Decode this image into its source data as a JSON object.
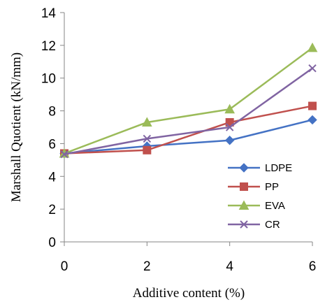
{
  "chart_data": {
    "type": "line",
    "title": "",
    "xlabel": "Additive content (%)",
    "ylabel": "Marshall Quotient (kN/mm)",
    "x": [
      0,
      2,
      4,
      6
    ],
    "xlim": [
      0,
      6
    ],
    "ylim": [
      0,
      14
    ],
    "xticks": [
      "0",
      "2",
      "4",
      "6"
    ],
    "yticks": [
      "0",
      "2",
      "4",
      "6",
      "8",
      "10",
      "12",
      "14"
    ],
    "grid": false,
    "legend_position": "bottom-right",
    "series": [
      {
        "name": "LDPE",
        "values": [
          5.4,
          5.85,
          6.2,
          7.45
        ],
        "color": "#4472C4",
        "marker": "diamond"
      },
      {
        "name": "PP",
        "values": [
          5.4,
          5.6,
          7.3,
          8.3
        ],
        "color": "#C0504D",
        "marker": "square"
      },
      {
        "name": "EVA",
        "values": [
          5.4,
          7.3,
          8.1,
          11.85
        ],
        "color": "#9BBB59",
        "marker": "triangle"
      },
      {
        "name": "CR",
        "values": [
          5.35,
          6.3,
          7.0,
          10.6
        ],
        "color": "#8064A2",
        "marker": "x"
      }
    ]
  }
}
